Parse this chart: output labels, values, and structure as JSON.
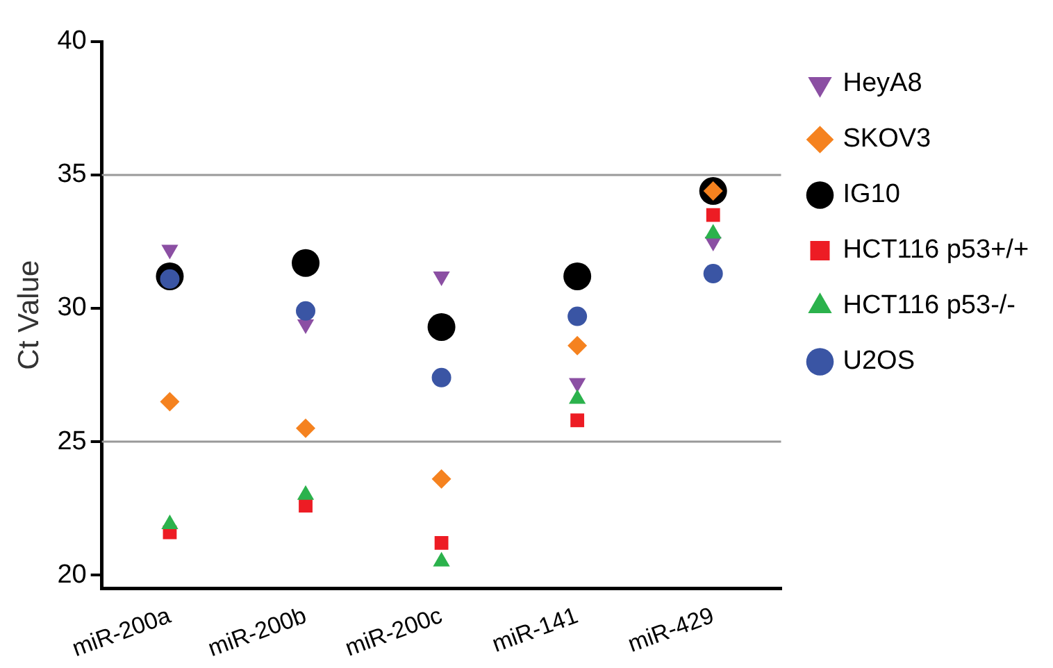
{
  "chart_data": {
    "type": "scatter",
    "ylabel": "Ct Value",
    "categories": [
      "miR-200a",
      "miR-200b",
      "miR-200c",
      "miR-141",
      "miR-429"
    ],
    "series": [
      {
        "name": "HeyA8",
        "color": "#8b4fa3",
        "marker": "triangle-down",
        "values": [
          32.2,
          29.4,
          31.2,
          27.2,
          32.5
        ]
      },
      {
        "name": "SKOV3",
        "color": "#f5821f",
        "marker": "diamond",
        "values": [
          26.5,
          25.5,
          23.6,
          28.6,
          34.4
        ]
      },
      {
        "name": "IG10",
        "color": "#000000",
        "marker": "circle",
        "values": [
          31.2,
          31.7,
          29.3,
          31.2,
          34.4
        ]
      },
      {
        "name": "HCT116 p53+/+",
        "color": "#ed1c24",
        "marker": "square",
        "values": [
          21.6,
          22.6,
          21.2,
          25.8,
          33.5
        ]
      },
      {
        "name": "HCT116 p53-/-",
        "color": "#2bb24c",
        "marker": "triangle",
        "values": [
          21.9,
          23.0,
          20.5,
          26.6,
          32.8
        ]
      },
      {
        "name": "U2OS",
        "color": "#3a55a4",
        "marker": "circle",
        "values": [
          31.1,
          29.9,
          27.4,
          29.7,
          31.3
        ]
      }
    ],
    "ylim": [
      19.5,
      40
    ],
    "yticks": [
      20,
      25,
      30,
      35,
      40
    ],
    "grid": false,
    "legend": "top right",
    "ref_lines": [
      {
        "axis": "y",
        "value": 25,
        "color": "#999999"
      },
      {
        "axis": "y",
        "value": 35,
        "color": "#999999"
      }
    ]
  }
}
